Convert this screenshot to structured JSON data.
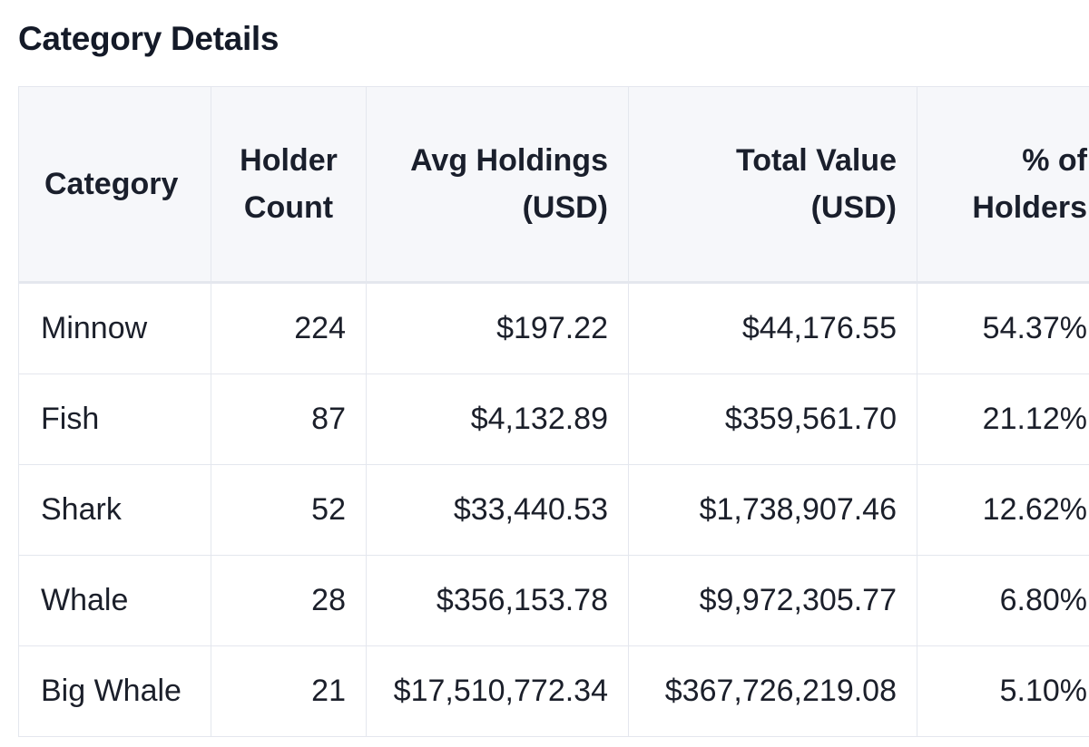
{
  "title": "Category Details",
  "table": {
    "headers": [
      {
        "line1": "Category",
        "line2": ""
      },
      {
        "line1": "Holder",
        "line2": "Count"
      },
      {
        "line1": "Avg Holdings",
        "line2": "(USD)"
      },
      {
        "line1": "Total Value",
        "line2": "(USD)"
      },
      {
        "line1": "% of",
        "line2": "Holders"
      }
    ],
    "rows": [
      [
        "Minnow",
        "224",
        "$197.22",
        "$44,176.55",
        "54.37%"
      ],
      [
        "Fish",
        "87",
        "$4,132.89",
        "$359,561.70",
        "21.12%"
      ],
      [
        "Shark",
        "52",
        "$33,440.53",
        "$1,738,907.46",
        "12.62%"
      ],
      [
        "Whale",
        "28",
        "$356,153.78",
        "$9,972,305.77",
        "6.80%"
      ],
      [
        "Big Whale",
        "21",
        "$17,510,772.34",
        "$367,726,219.08",
        "5.10%"
      ]
    ]
  }
}
